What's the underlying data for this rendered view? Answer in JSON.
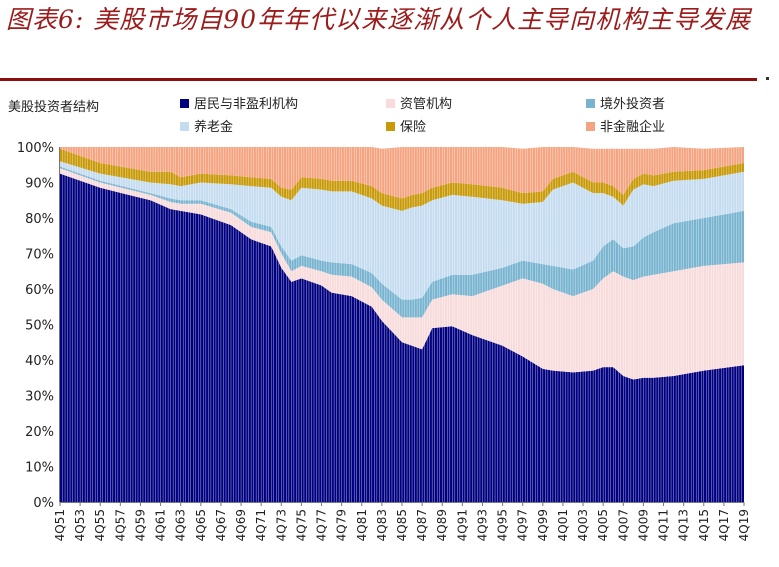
{
  "title": "图表6: 美股市场自90年年代以来逐渐从个人主导向机构主导发展",
  "chart_data": {
    "type": "area",
    "stacked": true,
    "percent": true,
    "ylabel": "美股投资者结构",
    "ylim": [
      0,
      100
    ],
    "yticks": [
      "0%",
      "10%",
      "20%",
      "30%",
      "40%",
      "50%",
      "60%",
      "70%",
      "80%",
      "90%",
      "100%"
    ],
    "xticks": [
      "4Q51",
      "4Q53",
      "4Q55",
      "4Q57",
      "4Q59",
      "4Q61",
      "4Q63",
      "4Q65",
      "4Q67",
      "4Q69",
      "4Q71",
      "4Q73",
      "4Q75",
      "4Q77",
      "4Q79",
      "4Q81",
      "4Q83",
      "4Q85",
      "4Q87",
      "4Q89",
      "4Q91",
      "4Q93",
      "4Q95",
      "4Q97",
      "4Q99",
      "4Q01",
      "4Q03",
      "4Q05",
      "4Q07",
      "4Q09",
      "4Q11",
      "4Q13",
      "4Q15",
      "4Q17",
      "4Q19"
    ],
    "x_years": [
      1951,
      1955,
      1960,
      1962,
      1963,
      1965,
      1968,
      1970,
      1972,
      1973,
      1974,
      1975,
      1977,
      1978,
      1980,
      1982,
      1983,
      1985,
      1986,
      1987,
      1988,
      1990,
      1992,
      1995,
      1997,
      1999,
      2000,
      2002,
      2004,
      2005,
      2006,
      2007,
      2008,
      2009,
      2010,
      2012,
      2015,
      2019
    ],
    "legend_position": "top",
    "series": [
      {
        "name": "居民与非盈利机构",
        "color": "#000080",
        "values": [
          92.5,
          88.5,
          85,
          82.5,
          82,
          81,
          78,
          74,
          72,
          66,
          62,
          63,
          61,
          59,
          58,
          55,
          51,
          45,
          44,
          43,
          49,
          49.5,
          47,
          44,
          41,
          37.5,
          37,
          36.5,
          37,
          38,
          38,
          35.5,
          34.5,
          35,
          35,
          35.5,
          37,
          38.5
        ]
      },
      {
        "name": "资管机构",
        "color": "#f8dcdc",
        "values": [
          1.5,
          1.5,
          1.5,
          2,
          2,
          3,
          3.5,
          3.5,
          4,
          4,
          3,
          3.5,
          4,
          5,
          5.5,
          5.5,
          6,
          7,
          8,
          9,
          8,
          9,
          11,
          17,
          22,
          24,
          23,
          21.5,
          23,
          25,
          27,
          28,
          28,
          28.5,
          29,
          29.5,
          29.5,
          29
        ]
      },
      {
        "name": "境外投资者",
        "color": "#78b4d0",
        "values": [
          0.5,
          0.5,
          0.5,
          1,
          1,
          1,
          1,
          1.5,
          1.5,
          2,
          3,
          3,
          3,
          3.5,
          3.5,
          4,
          4.5,
          5,
          5,
          5.5,
          5,
          5.5,
          6,
          5,
          5,
          5.5,
          6.5,
          7.5,
          8,
          9,
          9,
          8,
          9.5,
          11,
          12,
          13.5,
          13.5,
          14.5
        ]
      },
      {
        "name": "养老金",
        "color": "#c5dcf0",
        "values": [
          1.5,
          2,
          3,
          4,
          4,
          5,
          7,
          10,
          11,
          14,
          17,
          19,
          20,
          20,
          20.5,
          21,
          22,
          25,
          26,
          26,
          23,
          22.5,
          22,
          19,
          16,
          17.5,
          21.5,
          24.5,
          19,
          15,
          12,
          12,
          16,
          15,
          13,
          12,
          11,
          11
        ]
      },
      {
        "name": "保险",
        "color": "#c89a08",
        "values": [
          3.5,
          3,
          3,
          3.5,
          2.5,
          2.5,
          2.5,
          2.5,
          2.5,
          2.5,
          3,
          3,
          3,
          3,
          3,
          3.5,
          3.5,
          3.5,
          3.5,
          3.5,
          3.5,
          3.5,
          3.5,
          3.5,
          3,
          3,
          3,
          3,
          3,
          3,
          3,
          3,
          3,
          3,
          3,
          2.5,
          2.5,
          2.5
        ]
      },
      {
        "name": "非金融企业",
        "color": "#f4a480",
        "values": [
          0.5,
          4.5,
          7,
          7,
          8.5,
          7.5,
          8,
          8.5,
          9,
          11.5,
          12,
          8.5,
          9,
          9.5,
          9.5,
          11,
          12.5,
          14.5,
          13.5,
          13,
          11.5,
          10,
          10.5,
          11.5,
          12.5,
          12.5,
          9,
          7,
          9.5,
          9.5,
          10.5,
          13,
          8.5,
          7,
          7.5,
          7,
          6,
          4.5
        ]
      }
    ]
  }
}
